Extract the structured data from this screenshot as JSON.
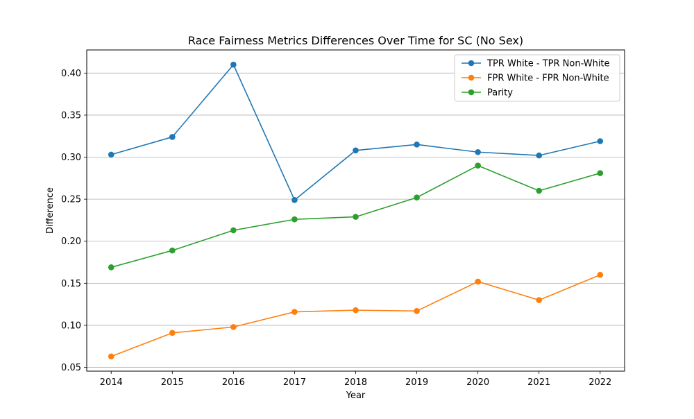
{
  "chart_data": {
    "type": "line",
    "title": "Race Fairness Metrics Differences Over Time for SC (No Sex)",
    "xlabel": "Year",
    "ylabel": "Difference",
    "x": [
      2014,
      2015,
      2016,
      2017,
      2018,
      2019,
      2020,
      2021,
      2022
    ],
    "x_tick_labels": [
      "2014",
      "2015",
      "2016",
      "2017",
      "2018",
      "2019",
      "2020",
      "2021",
      "2022"
    ],
    "xlim": [
      2013.6,
      2022.4
    ],
    "ylim": [
      0.0455,
      0.4275
    ],
    "y_ticks": [
      0.05,
      0.1,
      0.15,
      0.2,
      0.25,
      0.3,
      0.35,
      0.4
    ],
    "y_tick_labels": [
      "0.05",
      "0.10",
      "0.15",
      "0.20",
      "0.25",
      "0.30",
      "0.35",
      "0.40"
    ],
    "grid": "y-axis only",
    "legend_position": "top-right",
    "series": [
      {
        "name": "TPR White - TPR Non-White",
        "color": "#1f77b4",
        "values": [
          0.303,
          0.324,
          0.41,
          0.249,
          0.308,
          0.315,
          0.306,
          0.302,
          0.319
        ]
      },
      {
        "name": "FPR White - FPR Non-White",
        "color": "#ff7f0e",
        "values": [
          0.063,
          0.091,
          0.098,
          0.116,
          0.118,
          0.117,
          0.152,
          0.13,
          0.16
        ]
      },
      {
        "name": "Parity",
        "color": "#2ca02c",
        "values": [
          0.169,
          0.189,
          0.213,
          0.226,
          0.229,
          0.252,
          0.29,
          0.26,
          0.281
        ]
      }
    ]
  }
}
